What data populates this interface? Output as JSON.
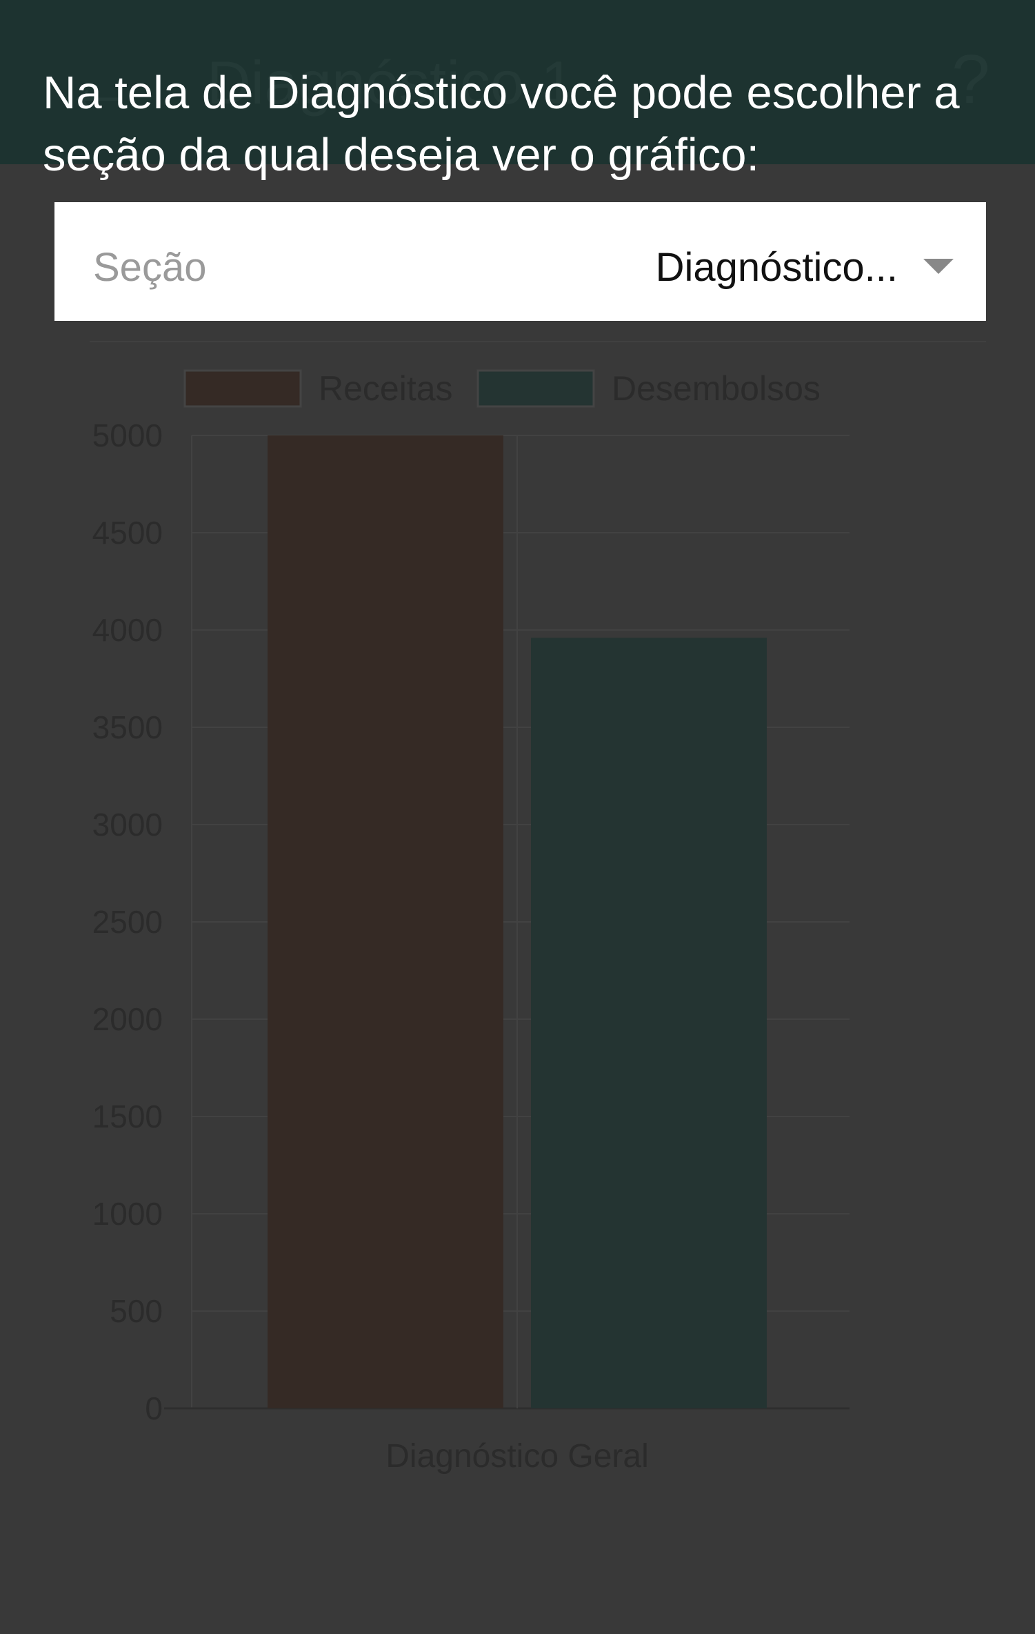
{
  "appbar": {
    "back_icon": "arrow-back-icon",
    "title": "Diagnóstico 1",
    "help_icon": "help-icon"
  },
  "tutorial": {
    "text": "Na tela de Diagnóstico você pode escolher a seção da qual deseja ver o gráfico:"
  },
  "section_selector": {
    "label": "Seção",
    "value": "Diagnóstico...",
    "icon": "dropdown-arrow-icon"
  },
  "colors": {
    "overlay_background": "#393939",
    "appbar": "#1d3330",
    "receitas": "#352a25",
    "desembolsos": "#243432"
  },
  "chart_data": {
    "type": "bar",
    "categories": [
      "Diagnóstico Geral"
    ],
    "series": [
      {
        "name": "Receitas",
        "values": [
          5000
        ],
        "color": "#352a25"
      },
      {
        "name": "Desembolsos",
        "values": [
          3960
        ],
        "color": "#243432"
      }
    ],
    "yticks": [
      "0",
      "500",
      "1000",
      "1500",
      "2000",
      "2500",
      "3000",
      "3500",
      "4000",
      "4500",
      "5000"
    ],
    "ylim": [
      0,
      5000
    ],
    "grid": true,
    "legend": "top"
  }
}
